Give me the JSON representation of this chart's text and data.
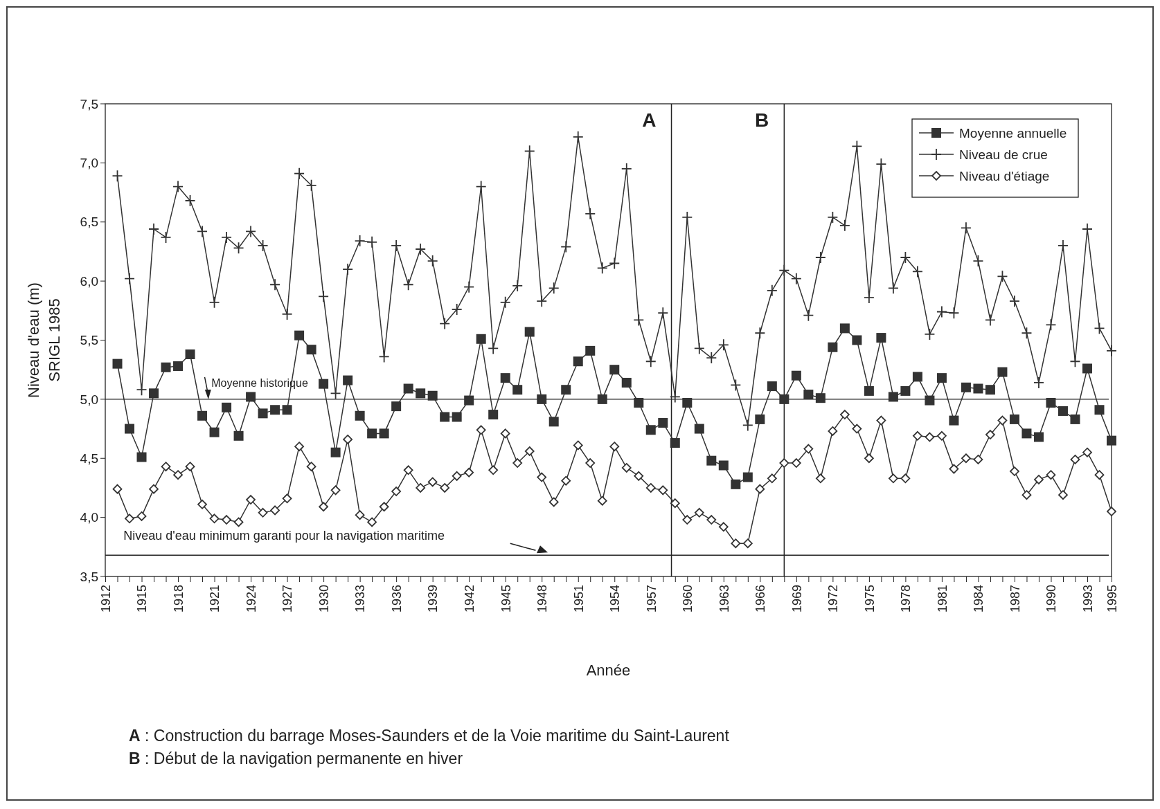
{
  "chart_data": {
    "type": "line",
    "xlabel": "Année",
    "ylabel": "Niveau d'eau (m)\nSRIGL 1985",
    "x": [
      1913,
      1914,
      1915,
      1916,
      1917,
      1918,
      1919,
      1920,
      1921,
      1922,
      1923,
      1924,
      1925,
      1926,
      1927,
      1928,
      1929,
      1930,
      1931,
      1932,
      1933,
      1934,
      1935,
      1936,
      1937,
      1938,
      1939,
      1940,
      1941,
      1942,
      1943,
      1944,
      1945,
      1946,
      1947,
      1948,
      1949,
      1950,
      1951,
      1952,
      1953,
      1954,
      1955,
      1956,
      1957,
      1958,
      1959,
      1960,
      1961,
      1962,
      1963,
      1964,
      1965,
      1966,
      1967,
      1968,
      1969,
      1970,
      1971,
      1972,
      1973,
      1974,
      1975,
      1976,
      1977,
      1978,
      1979,
      1980,
      1981,
      1982,
      1983,
      1984,
      1985,
      1986,
      1987,
      1988,
      1989,
      1990,
      1991,
      1992,
      1993,
      1994,
      1995
    ],
    "series": [
      {
        "name": "Moyenne annuelle",
        "color": "#333333",
        "marker": "square",
        "values": [
          5.3,
          4.75,
          4.51,
          5.05,
          5.27,
          5.28,
          5.38,
          4.86,
          4.72,
          4.93,
          4.69,
          5.02,
          4.88,
          4.91,
          4.91,
          5.54,
          5.42,
          5.13,
          4.55,
          5.16,
          4.86,
          4.71,
          4.71,
          4.94,
          5.09,
          5.05,
          5.03,
          4.85,
          4.85,
          4.99,
          5.51,
          4.87,
          5.18,
          5.08,
          5.57,
          5.0,
          4.81,
          5.08,
          5.32,
          5.41,
          5.0,
          5.25,
          5.14,
          4.97,
          4.74,
          4.8,
          4.63,
          4.97,
          4.75,
          4.48,
          4.44,
          4.28,
          4.34,
          4.83,
          5.11,
          5.0,
          5.2,
          5.04,
          5.01,
          5.44,
          5.6,
          5.5,
          5.07,
          5.52,
          5.02,
          5.07,
          5.19,
          4.99,
          5.18,
          4.82,
          5.1,
          5.09,
          5.08,
          5.23,
          4.83,
          4.71,
          4.68,
          4.97,
          4.9,
          4.83,
          5.26,
          4.91,
          4.65
        ]
      },
      {
        "name": "Niveau de crue",
        "color": "#333333",
        "marker": "cross",
        "values": [
          6.89,
          6.02,
          5.08,
          6.44,
          6.37,
          6.8,
          6.68,
          6.42,
          5.82,
          6.37,
          6.28,
          6.42,
          6.3,
          5.97,
          5.72,
          6.91,
          6.81,
          5.87,
          5.05,
          6.1,
          6.34,
          6.33,
          5.36,
          6.3,
          5.97,
          6.27,
          6.17,
          5.64,
          5.76,
          5.95,
          6.8,
          5.43,
          5.82,
          5.96,
          7.1,
          5.83,
          5.94,
          6.29,
          7.22,
          6.57,
          6.11,
          6.15,
          6.95,
          5.67,
          5.32,
          5.73,
          5.02,
          6.54,
          5.43,
          5.35,
          5.46,
          5.12,
          4.78,
          5.56,
          5.92,
          6.09,
          6.02,
          5.71,
          6.2,
          6.54,
          6.47,
          7.14,
          5.86,
          6.99,
          5.94,
          6.2,
          6.08,
          5.55,
          5.74,
          5.73,
          6.45,
          6.17,
          5.67,
          6.04,
          5.83,
          5.56,
          5.14,
          5.63,
          6.3,
          5.32,
          6.44,
          5.6,
          5.41
        ]
      },
      {
        "name": "Niveau d'étiage",
        "color": "#333333",
        "marker": "diamond",
        "values": [
          4.24,
          3.99,
          4.01,
          4.24,
          4.43,
          4.36,
          4.43,
          4.11,
          3.99,
          3.98,
          3.96,
          4.15,
          4.04,
          4.06,
          4.16,
          4.6,
          4.43,
          4.09,
          4.23,
          4.66,
          4.02,
          3.96,
          4.09,
          4.22,
          4.4,
          4.25,
          4.3,
          4.25,
          4.35,
          4.38,
          4.74,
          4.4,
          4.71,
          4.46,
          4.56,
          4.34,
          4.13,
          4.31,
          4.61,
          4.46,
          4.14,
          4.6,
          4.42,
          4.35,
          4.25,
          4.23,
          4.12,
          3.98,
          4.04,
          3.98,
          3.92,
          3.78,
          3.78,
          4.24,
          4.33,
          4.46,
          4.46,
          4.58,
          4.33,
          4.73,
          4.87,
          4.75,
          4.5,
          4.82,
          4.33,
          4.33,
          4.69,
          4.68,
          4.69,
          4.41,
          4.5,
          4.49,
          4.7,
          4.82,
          4.39,
          4.19,
          4.32,
          4.36,
          4.19,
          4.49,
          4.55,
          4.36,
          4.05
        ]
      }
    ],
    "xlim": [
      1912,
      1995
    ],
    "xticks": [
      1912,
      {
        "value": 1913,
        "label": null
      },
      {
        "value": 1914,
        "label": null
      },
      1915,
      {
        "value": 1916,
        "label": null
      },
      {
        "value": 1917,
        "label": null
      },
      1918,
      {
        "value": 1919,
        "label": null
      },
      {
        "value": 1920,
        "label": null
      },
      1921,
      {
        "value": 1922,
        "label": null
      },
      {
        "value": 1923,
        "label": null
      },
      1924,
      {
        "value": 1925,
        "label": null
      },
      {
        "value": 1926,
        "label": null
      },
      1927,
      {
        "value": 1928,
        "label": null
      },
      {
        "value": 1929,
        "label": null
      },
      1930,
      {
        "value": 1931,
        "label": null
      },
      {
        "value": 1932,
        "label": null
      },
      1933,
      {
        "value": 1934,
        "label": null
      },
      {
        "value": 1935,
        "label": null
      },
      1936,
      {
        "value": 1937,
        "label": null
      },
      {
        "value": 1938,
        "label": null
      },
      1939,
      {
        "value": 1940,
        "label": null
      },
      {
        "value": 1941,
        "label": null
      },
      1942,
      {
        "value": 1943,
        "label": null
      },
      {
        "value": 1944,
        "label": null
      },
      1945,
      {
        "value": 1946,
        "label": null
      },
      {
        "value": 1947,
        "label": null
      },
      1948,
      {
        "value": 1949,
        "label": null
      },
      {
        "value": 1950,
        "label": null
      },
      1951,
      {
        "value": 1952,
        "label": null
      },
      {
        "value": 1953,
        "label": null
      },
      1954,
      {
        "value": 1955,
        "label": null
      },
      {
        "value": 1956,
        "label": null
      },
      1957,
      {
        "value": 1958,
        "label": null
      },
      {
        "value": 1959,
        "label": null
      },
      1960,
      {
        "value": 1961,
        "label": null
      },
      {
        "value": 1962,
        "label": null
      },
      1963,
      {
        "value": 1964,
        "label": null
      },
      {
        "value": 1965,
        "label": null
      },
      1966,
      {
        "value": 1967,
        "label": null
      },
      {
        "value": 1968,
        "label": null
      },
      1969,
      {
        "value": 1970,
        "label": null
      },
      {
        "value": 1971,
        "label": null
      },
      1972,
      {
        "value": 1973,
        "label": null
      },
      {
        "value": 1974,
        "label": null
      },
      1975,
      {
        "value": 1976,
        "label": null
      },
      {
        "value": 1977,
        "label": null
      },
      1978,
      {
        "value": 1979,
        "label": null
      },
      {
        "value": 1980,
        "label": null
      },
      1981,
      {
        "value": 1982,
        "label": null
      },
      {
        "value": 1983,
        "label": null
      },
      1984,
      {
        "value": 1985,
        "label": null
      },
      {
        "value": 1986,
        "label": null
      },
      1987,
      {
        "value": 1988,
        "label": null
      },
      {
        "value": 1989,
        "label": null
      },
      1990,
      {
        "value": 1991,
        "label": null
      },
      {
        "value": 1992,
        "label": null
      },
      1993,
      {
        "value": 1994,
        "label": null
      },
      1995
    ],
    "ylim": [
      3.5,
      7.5
    ],
    "yticks": [
      {
        "value": 3.5,
        "label": "3,5"
      },
      {
        "value": 4.0,
        "label": "4,0"
      },
      {
        "value": 4.5,
        "label": "4,5"
      },
      {
        "value": 5.0,
        "label": "5,0"
      },
      {
        "value": 5.5,
        "label": "5,5"
      },
      {
        "value": 6.0,
        "label": "6,0"
      },
      {
        "value": 6.5,
        "label": "6,5"
      },
      {
        "value": 7.0,
        "label": "7,0"
      },
      {
        "value": 7.5,
        "label": "7,5"
      }
    ],
    "ref_lines": [
      {
        "axis": "y",
        "value": 5.0,
        "label": "Moyenne historique"
      },
      {
        "axis": "y",
        "value": 3.68,
        "label": "Niveau d'eau minimum garanti pour la navigation maritime"
      },
      {
        "axis": "x",
        "value": 1958.7,
        "label": "A"
      },
      {
        "axis": "x",
        "value": 1968,
        "label": "B"
      }
    ],
    "legend": "top right",
    "grid": false,
    "line_style": "solid",
    "annotations": [
      "A : Construction du barrage Moses-Saunders et de la Voie maritime du Saint-Laurent",
      "B : Début de la navigation permanente en hiver"
    ]
  }
}
